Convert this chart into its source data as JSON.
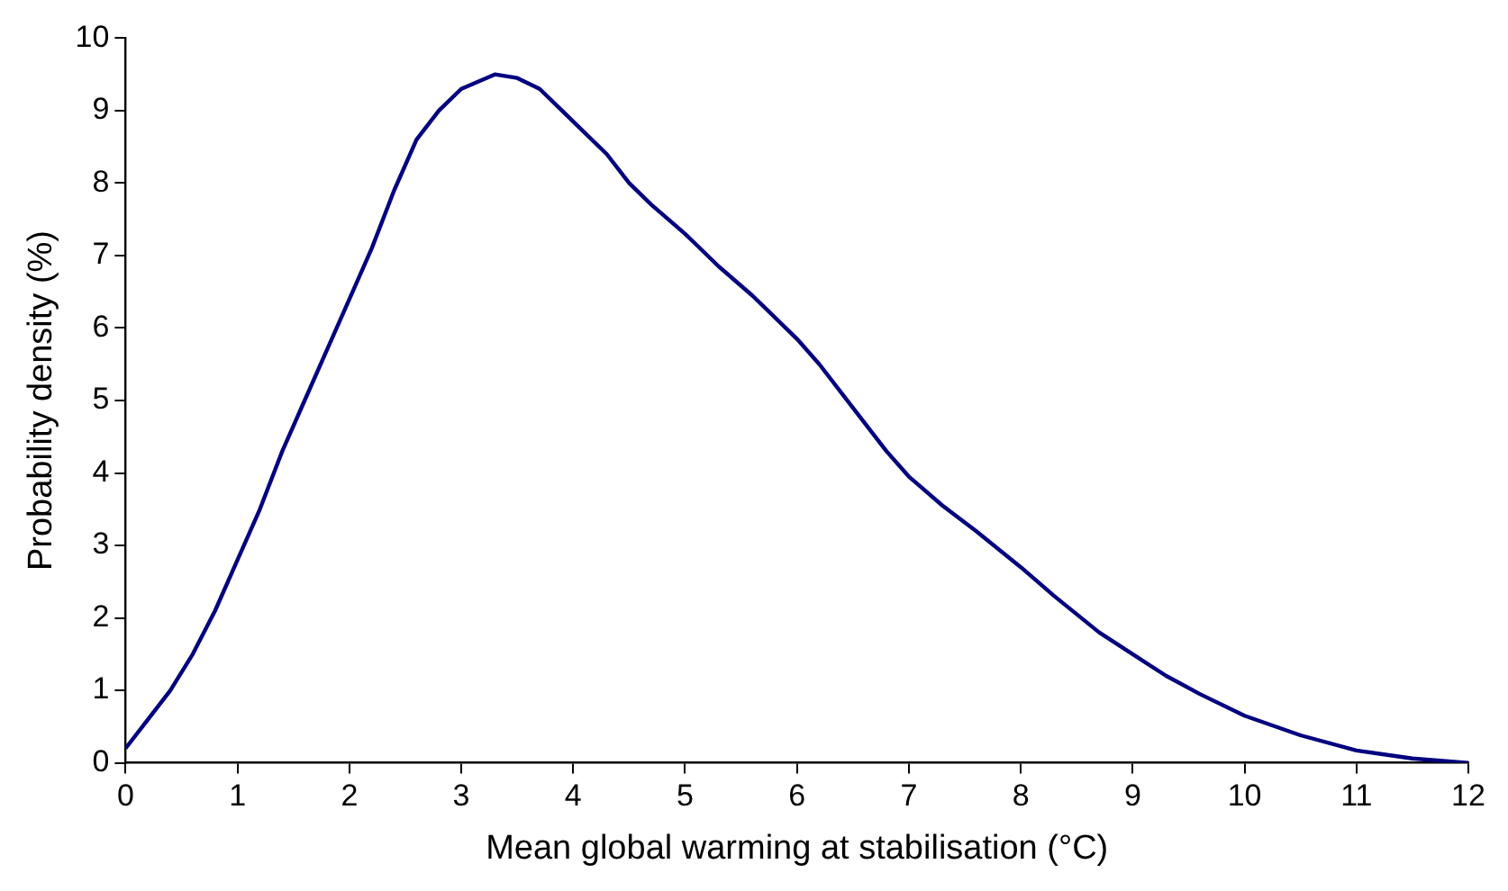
{
  "chart_data": {
    "type": "line",
    "xlabel": "Mean global warming at stabilisation (°C)",
    "ylabel": "Probability density (%)",
    "x": [
      0,
      0.2,
      0.4,
      0.6,
      0.8,
      1.0,
      1.2,
      1.4,
      1.6,
      1.8,
      2.0,
      2.2,
      2.4,
      2.6,
      2.8,
      3.0,
      3.3,
      3.5,
      3.7,
      3.9,
      4.1,
      4.3,
      4.5,
      4.7,
      5.0,
      5.3,
      5.6,
      5.8,
      6.0,
      6.2,
      6.5,
      6.8,
      7.0,
      7.3,
      7.6,
      8.0,
      8.3,
      8.7,
      9.0,
      9.3,
      9.6,
      10.0,
      10.5,
      11.0,
      11.5,
      12.0
    ],
    "series": [
      {
        "color": "#000080",
        "values": [
          0.2,
          0.6,
          1.0,
          1.5,
          2.1,
          2.8,
          3.5,
          4.3,
          5.0,
          5.7,
          6.4,
          7.1,
          7.9,
          8.6,
          9.0,
          9.3,
          9.5,
          9.45,
          9.3,
          9.0,
          8.7,
          8.4,
          8.0,
          7.7,
          7.3,
          6.85,
          6.45,
          6.15,
          5.85,
          5.5,
          4.9,
          4.3,
          3.95,
          3.55,
          3.2,
          2.7,
          2.3,
          1.8,
          1.5,
          1.2,
          0.95,
          0.65,
          0.38,
          0.17,
          0.06,
          0.0
        ]
      }
    ],
    "xlim": [
      0,
      12
    ],
    "xticks": [
      0,
      1,
      2,
      3,
      4,
      5,
      6,
      7,
      8,
      9,
      10,
      11,
      12
    ],
    "ylim": [
      0,
      10
    ],
    "yticks": [
      0,
      1,
      2,
      3,
      4,
      5,
      6,
      7,
      8,
      9,
      10
    ],
    "grid": false,
    "legend": false,
    "marker": "none",
    "line_style": "solid"
  }
}
